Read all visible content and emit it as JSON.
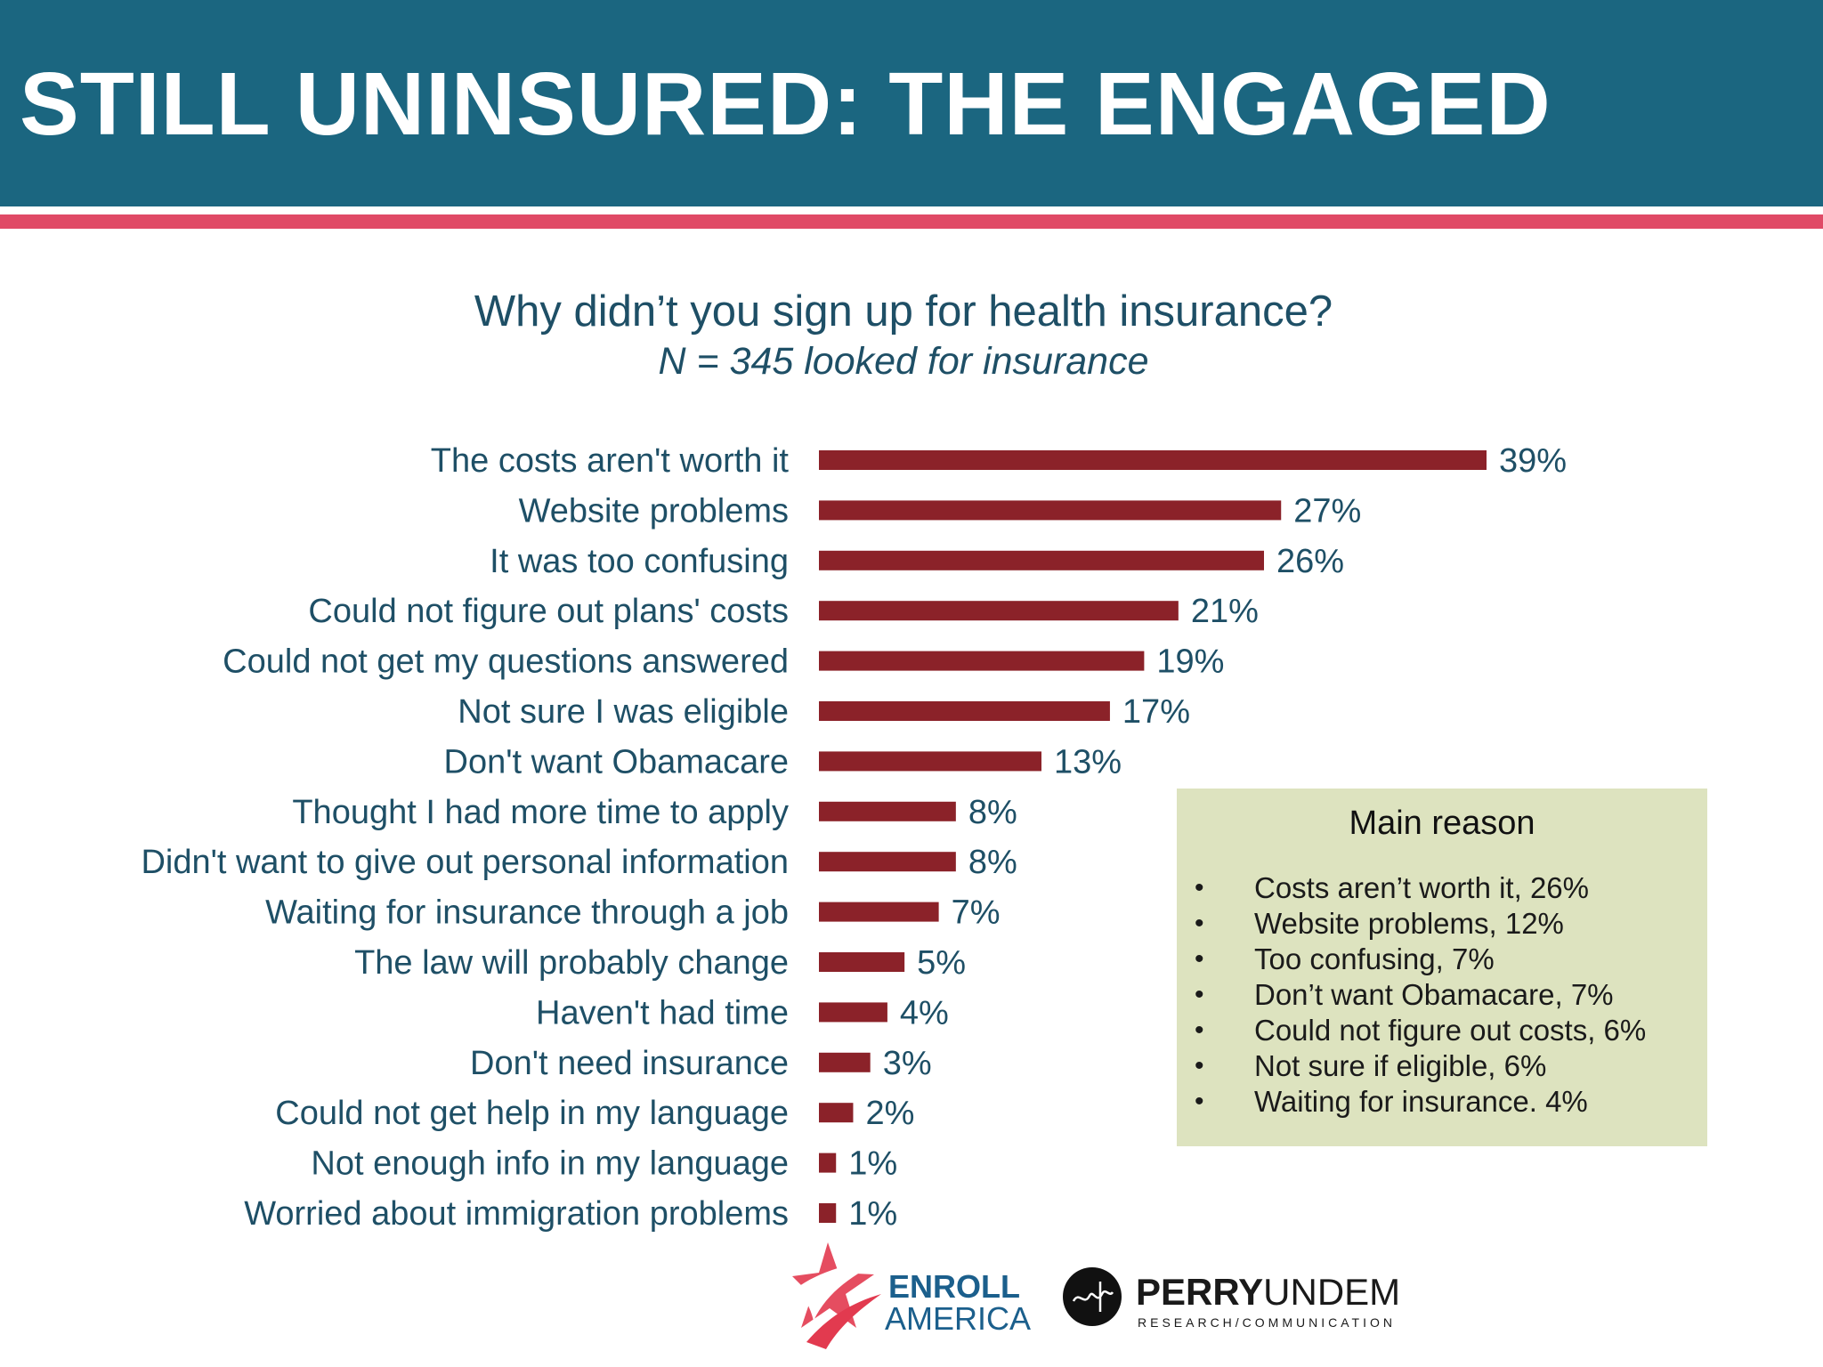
{
  "slide": {
    "title": "STILL UNINSURED: THE ENGAGED"
  },
  "colors": {
    "header_band": "#1b6680",
    "accent_rule": "#e04a66",
    "bar": "#8b2229",
    "text": "#1e4f66",
    "callout_bg": "#dde3bf"
  },
  "chart_data": {
    "type": "bar",
    "orientation": "horizontal",
    "title": "Why didn’t you sign up for health insurance?",
    "subtitle": "N = 345 looked for insurance",
    "xlabel": "",
    "ylabel": "",
    "xlim": [
      0,
      39
    ],
    "grid": false,
    "categories": [
      "The costs aren't worth it",
      "Website problems",
      "It was too confusing",
      "Could not figure out plans' costs",
      "Could not get my questions answered",
      "Not sure I was eligible",
      "Don't want Obamacare",
      "Thought I had more time to apply",
      "Didn't want to give out personal information",
      "Waiting for insurance through a job",
      "The law will probably change",
      "Haven't had time",
      "Don't need insurance",
      "Could not get help in my language",
      "Not enough info in my language",
      "Worried about immigration problems"
    ],
    "values": [
      39,
      27,
      26,
      21,
      19,
      17,
      13,
      8,
      8,
      7,
      5,
      4,
      3,
      2,
      1,
      1
    ],
    "value_labels": [
      "39%",
      "27%",
      "26%",
      "21%",
      "19%",
      "17%",
      "13%",
      "8%",
      "8%",
      "7%",
      "5%",
      "4%",
      "3%",
      "2%",
      "1%",
      "1%"
    ]
  },
  "callout": {
    "title": "Main reason",
    "bullet_glyph": "•",
    "items": [
      "Costs aren’t worth it, 26%",
      "Website problems, 12%",
      "Too confusing, 7%",
      "Don’t want Obamacare, 7%",
      "Could not figure out costs, 6%",
      "Not sure if eligible, 6%",
      "Waiting for insurance. 4%"
    ]
  },
  "logos": {
    "enroll_line1": "ENROLL",
    "enroll_line2": "AMERICA",
    "perry_bold": "PERRY",
    "perry_light": "UNDEM",
    "perry_tagline": "RESEARCH/COMMUNICATION",
    "enroll_logo_icon": "red-star-swoosh-icon",
    "perry_logo_icon": "black-circle-monogram-icon"
  }
}
